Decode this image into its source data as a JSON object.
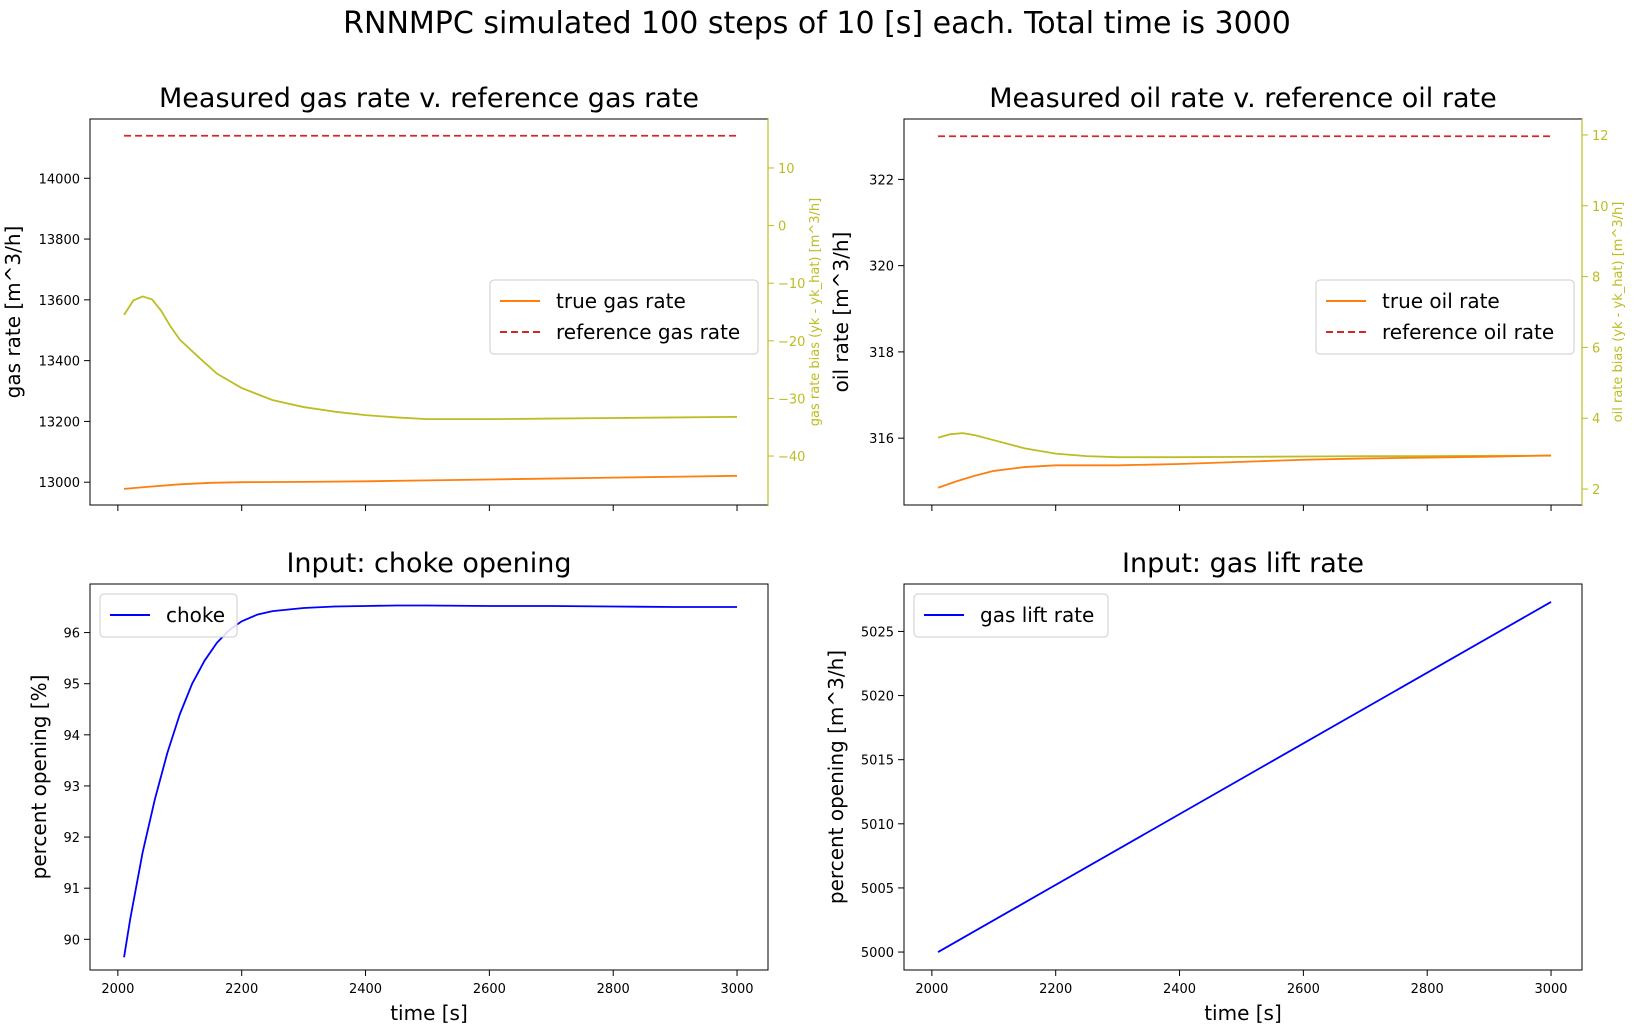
{
  "figure": {
    "suptitle": "RNNMPC simulated 100 steps of 10 [s] each. Total time is 3000"
  },
  "colors": {
    "true_rate": "#ff7f0e",
    "reference": "#d62728",
    "bias": "#bcbd22",
    "input": "#0000ff"
  },
  "chart_data": [
    {
      "id": "gas",
      "type": "line",
      "title": "Measured gas rate v. reference gas rate",
      "ylabel": "gas rate [m^3/h]",
      "xlim": [
        1955,
        3050
      ],
      "ylim": [
        12925,
        14195
      ],
      "xticks": [
        2000,
        2200,
        2400,
        2600,
        2800,
        3000
      ],
      "yticks": [
        13000,
        13200,
        13400,
        13600,
        13800,
        14000
      ],
      "show_xticklabels": false,
      "legend": {
        "position": "center-right",
        "entries": [
          "true gas rate",
          "reference gas rate"
        ]
      },
      "series": [
        {
          "name": "true gas rate",
          "color": "#ff7f0e",
          "style": "solid",
          "x": [
            2010,
            2050,
            2100,
            2150,
            2200,
            2300,
            2400,
            2500,
            2600,
            2700,
            2800,
            2900,
            3000
          ],
          "y": [
            12978,
            12985,
            12993,
            12998,
            13000,
            13001,
            13003,
            13006,
            13009,
            13012,
            13015,
            13018,
            13021
          ]
        },
        {
          "name": "reference gas rate",
          "color": "#d62728",
          "style": "dashed",
          "x": [
            2010,
            3000
          ],
          "y": [
            14140,
            14140
          ]
        }
      ],
      "secondary_axis": {
        "ylabel": "gas rate bias (yk - yk_hat) [m^3/h]",
        "ylim": [
          -48.5,
          18.5
        ],
        "yticks": [
          10,
          0,
          -10,
          -20,
          -30,
          -40
        ],
        "tick_labels": [
          "10",
          "0",
          "−10",
          "−20",
          "−30",
          "−40"
        ],
        "color": "#bcbd22",
        "series": [
          {
            "color": "#bcbd22",
            "x": [
              2010,
              2025,
              2040,
              2055,
              2070,
              2085,
              2100,
              2130,
              2160,
              2200,
              2250,
              2300,
              2350,
              2400,
              2450,
              2500,
              2600,
              2700,
              2800,
              2900,
              3000
            ],
            "y": [
              -15.5,
              -13.0,
              -12.3,
              -12.8,
              -14.8,
              -17.5,
              -19.8,
              -22.8,
              -25.7,
              -28.2,
              -30.3,
              -31.5,
              -32.3,
              -32.9,
              -33.3,
              -33.6,
              -33.6,
              -33.5,
              -33.4,
              -33.3,
              -33.2
            ]
          }
        ]
      }
    },
    {
      "id": "oil",
      "type": "line",
      "title": "Measured oil rate v. reference oil rate",
      "ylabel": "oil rate [m^3/h]",
      "xlim": [
        1955,
        3050
      ],
      "ylim": [
        314.45,
        323.4
      ],
      "xticks": [
        2000,
        2200,
        2400,
        2600,
        2800,
        3000
      ],
      "yticks": [
        316,
        318,
        320,
        322
      ],
      "show_xticklabels": false,
      "legend": {
        "position": "center-right",
        "entries": [
          "true oil rate",
          "reference oil rate"
        ]
      },
      "series": [
        {
          "name": "true oil rate",
          "color": "#ff7f0e",
          "style": "solid",
          "x": [
            2010,
            2040,
            2070,
            2100,
            2150,
            2200,
            2250,
            2300,
            2400,
            2500,
            2600,
            2700,
            2800,
            2900,
            3000
          ],
          "y": [
            314.85,
            315.0,
            315.13,
            315.24,
            315.33,
            315.37,
            315.37,
            315.37,
            315.4,
            315.45,
            315.5,
            315.53,
            315.55,
            315.57,
            315.6
          ]
        },
        {
          "name": "reference oil rate",
          "color": "#d62728",
          "style": "dashed",
          "x": [
            2010,
            3000
          ],
          "y": [
            323.0,
            323.0
          ]
        }
      ],
      "secondary_axis": {
        "ylabel": "oil rate bias (yk - yk_hat) [m^3/h]",
        "ylim": [
          1.55,
          12.45
        ],
        "yticks": [
          2,
          4,
          6,
          8,
          10,
          12
        ],
        "tick_labels": [
          "2",
          "4",
          "6",
          "8",
          "10",
          "12"
        ],
        "color": "#bcbd22",
        "series": [
          {
            "color": "#bcbd22",
            "x": [
              2010,
              2030,
              2050,
              2070,
              2100,
              2150,
              2200,
              2250,
              2300,
              2400,
              2500,
              2600,
              2700,
              2800,
              2900,
              3000
            ],
            "y": [
              3.45,
              3.55,
              3.58,
              3.52,
              3.38,
              3.15,
              3.0,
              2.93,
              2.9,
              2.9,
              2.91,
              2.92,
              2.93,
              2.93,
              2.94,
              2.94
            ]
          }
        ]
      }
    },
    {
      "id": "choke",
      "type": "line",
      "title": "Input: choke opening",
      "ylabel": "percent opening [%]",
      "xlabel": "time [s]",
      "xlim": [
        1955,
        3050
      ],
      "ylim": [
        89.4,
        96.95
      ],
      "xticks": [
        2000,
        2200,
        2400,
        2600,
        2800,
        3000
      ],
      "yticks": [
        90,
        91,
        92,
        93,
        94,
        95,
        96
      ],
      "show_xticklabels": true,
      "legend": {
        "position": "upper-left",
        "entries": [
          "choke"
        ]
      },
      "series": [
        {
          "name": "choke",
          "color": "#0000ff",
          "style": "solid",
          "x": [
            2010,
            2020,
            2040,
            2060,
            2080,
            2100,
            2120,
            2140,
            2160,
            2180,
            2200,
            2225,
            2250,
            2300,
            2350,
            2400,
            2450,
            2500,
            2600,
            2700,
            2800,
            2900,
            3000
          ],
          "y": [
            89.65,
            90.4,
            91.7,
            92.75,
            93.65,
            94.4,
            95.0,
            95.45,
            95.8,
            96.05,
            96.22,
            96.35,
            96.42,
            96.48,
            96.51,
            96.52,
            96.53,
            96.53,
            96.52,
            96.52,
            96.51,
            96.5,
            96.5
          ]
        }
      ]
    },
    {
      "id": "gaslift",
      "type": "line",
      "title": "Input: gas lift rate",
      "ylabel": "percent opening [m^3/h]",
      "xlabel": "time [s]",
      "xlim": [
        1955,
        3050
      ],
      "ylim": [
        4998.6,
        5028.7
      ],
      "xticks": [
        2000,
        2200,
        2400,
        2600,
        2800,
        3000
      ],
      "yticks": [
        5000,
        5005,
        5010,
        5015,
        5020,
        5025
      ],
      "show_xticklabels": true,
      "legend": {
        "position": "upper-left",
        "entries": [
          "gas lift rate"
        ]
      },
      "series": [
        {
          "name": "gas lift rate",
          "color": "#0000ff",
          "style": "solid",
          "x": [
            2010,
            3000
          ],
          "y": [
            5000.0,
            5027.3
          ]
        }
      ]
    }
  ]
}
